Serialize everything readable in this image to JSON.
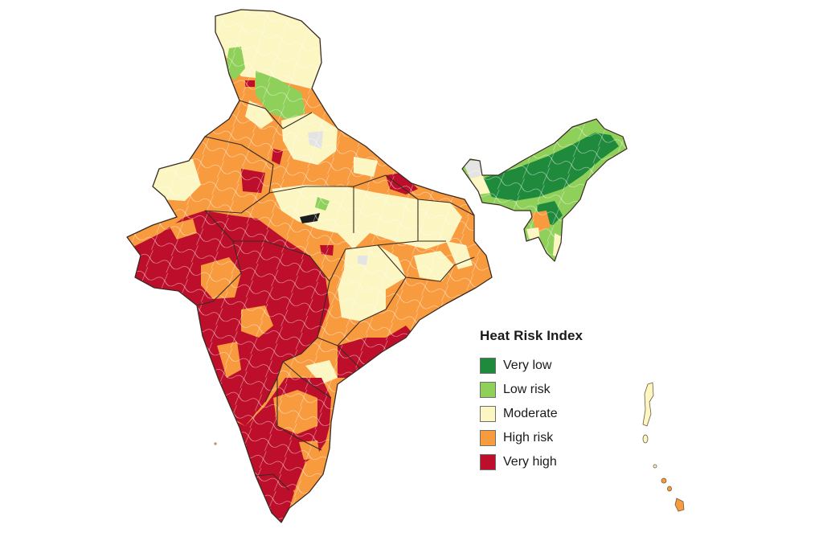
{
  "legend": {
    "title": "Heat Risk Index",
    "items": [
      {
        "key": "very-low",
        "label": "Very low",
        "color": "#1f8a3c"
      },
      {
        "key": "low-risk",
        "label": "Low risk",
        "color": "#8fd05a"
      },
      {
        "key": "moderate",
        "label": "Moderate",
        "color": "#fbf6c2"
      },
      {
        "key": "high-risk",
        "label": "High risk",
        "color": "#f89a3e"
      },
      {
        "key": "very-high",
        "label": "Very high",
        "color": "#bd0f2b"
      }
    ]
  },
  "colors": {
    "boundary": "#3a2a22",
    "district_line": "#ffffff",
    "no_data": "#e4e4e4",
    "background": "#ffffff"
  }
}
